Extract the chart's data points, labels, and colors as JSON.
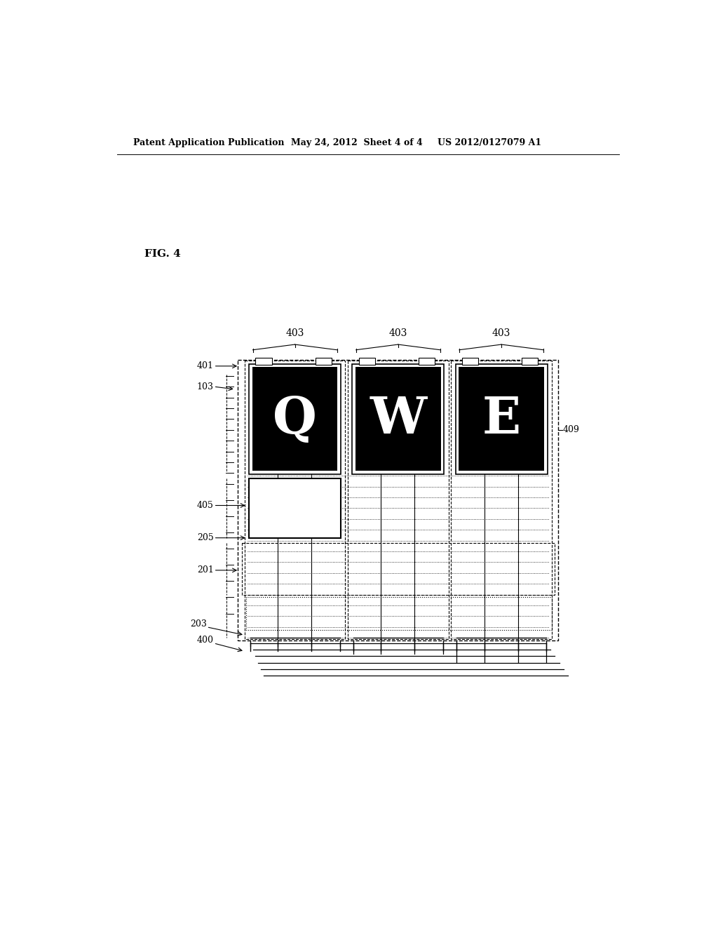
{
  "bg_color": "#ffffff",
  "header_text1": "Patent Application Publication",
  "header_text2": "May 24, 2012  Sheet 4 of 4",
  "header_text3": "US 2012/0127079 A1",
  "fig_label": "FIG. 4",
  "letters": [
    "Q",
    "W",
    "E"
  ]
}
